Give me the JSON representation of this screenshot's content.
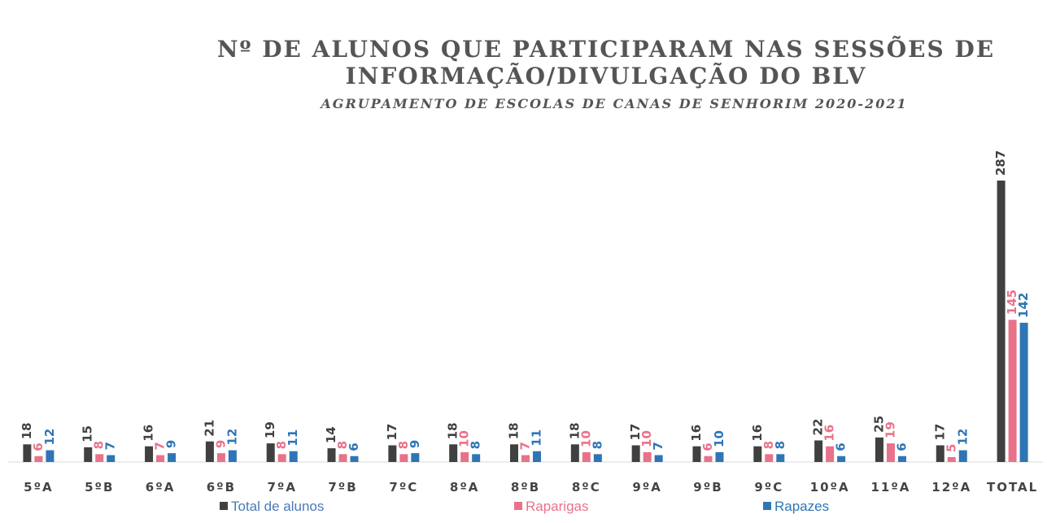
{
  "chart_data": {
    "type": "bar",
    "title": "Nº DE ALUNOS QUE PARTICIPARAM NAS SESSÕES DE",
    "title_line2": "INFORMAÇÃO/DIVULGAÇÃO DO BLV",
    "subtitle": "AGRUPAMENTO DE ESCOLAS DE CANAS DE SENHORIM 2020-2021",
    "categories": [
      "5ºA",
      "5ºB",
      "6ºA",
      "6ºB",
      "7ºA",
      "7ºB",
      "7ºC",
      "8ºA",
      "8ºB",
      "8ºC",
      "9ºA",
      "9ºB",
      "9ºC",
      "10ºA",
      "11ºA",
      "12ºA",
      "TOTAL"
    ],
    "series": [
      {
        "name": "Total de alunos",
        "color": "#404040",
        "values": [
          18,
          15,
          16,
          21,
          19,
          14,
          17,
          18,
          18,
          18,
          17,
          16,
          16,
          22,
          25,
          17,
          287
        ]
      },
      {
        "name": "Raparigas",
        "color": "#e8728a",
        "values": [
          6,
          8,
          7,
          9,
          8,
          8,
          8,
          10,
          7,
          10,
          10,
          6,
          8,
          16,
          19,
          5,
          145
        ]
      },
      {
        "name": "Rapazes",
        "color": "#2e75b6",
        "values": [
          12,
          7,
          9,
          12,
          11,
          6,
          9,
          8,
          11,
          8,
          7,
          10,
          8,
          6,
          6,
          12,
          142
        ]
      }
    ],
    "legend": "bottom"
  }
}
